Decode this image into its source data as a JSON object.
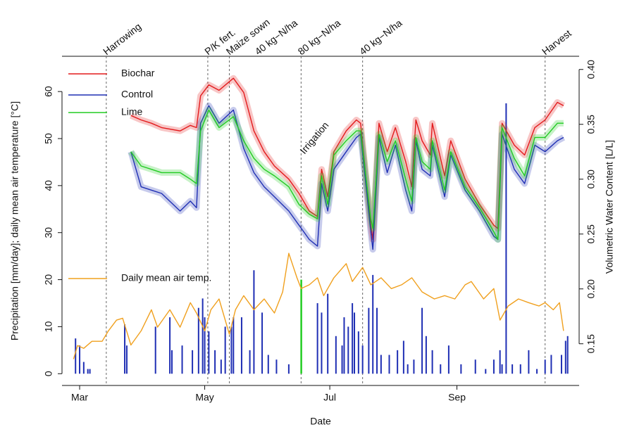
{
  "chart_data": {
    "type": "line",
    "xlabel": "Date",
    "ylabel": "Precipitation [mm/day]; daily mean air temperature [°C]",
    "y2label": "Volumetric Water Content [L/L]",
    "xlim": [
      51.4,
      303.6
    ],
    "ylim": [
      -2.5,
      67.5
    ],
    "y2lim": [
      0.112,
      0.412
    ],
    "xticks": [
      {
        "value": 60,
        "label": "Mar"
      },
      {
        "value": 121,
        "label": "May"
      },
      {
        "value": 182,
        "label": "Jul"
      },
      {
        "value": 244,
        "label": "Sep"
      }
    ],
    "yticks": [
      0,
      10,
      20,
      30,
      40,
      50,
      60
    ],
    "y2ticks": [
      {
        "value": 0.15,
        "label": "0.15"
      },
      {
        "value": 0.2,
        "label": "0.20"
      },
      {
        "value": 0.25,
        "label": "0.25"
      },
      {
        "value": 0.3,
        "label": "0.30"
      },
      {
        "value": 0.35,
        "label": "0.35"
      },
      {
        "value": 0.4,
        "label": "0.40"
      }
    ],
    "series": [
      {
        "name": "Biochar",
        "color": "#e31a1c",
        "axis": "y2",
        "x": [
          85,
          90,
          95,
          100,
          109,
          114,
          117,
          119,
          123,
          128,
          135,
          140,
          145,
          150,
          155,
          162,
          167,
          172,
          176,
          178,
          181,
          184,
          190,
          195,
          197,
          202,
          203,
          206,
          210,
          214,
          219,
          222,
          224,
          227,
          231,
          232,
          238,
          241,
          248,
          255,
          262,
          264,
          266,
          272,
          277,
          282,
          287,
          293,
          296
        ],
        "values": [
          0.358,
          0.354,
          0.351,
          0.347,
          0.344,
          0.349,
          0.347,
          0.376,
          0.386,
          0.381,
          0.392,
          0.379,
          0.344,
          0.325,
          0.312,
          0.3,
          0.287,
          0.271,
          0.266,
          0.309,
          0.284,
          0.325,
          0.344,
          0.354,
          0.351,
          0.258,
          0.245,
          0.351,
          0.325,
          0.347,
          0.316,
          0.293,
          0.354,
          0.335,
          0.322,
          0.351,
          0.303,
          0.335,
          0.3,
          0.277,
          0.258,
          0.255,
          0.351,
          0.331,
          0.322,
          0.347,
          0.354,
          0.37,
          0.367
        ]
      },
      {
        "name": "Control",
        "color": "#1f2fb4",
        "axis": "y2",
        "x": [
          85,
          90,
          95,
          100,
          109,
          114,
          117,
          119,
          123,
          128,
          135,
          140,
          145,
          150,
          155,
          162,
          167,
          172,
          176,
          178,
          181,
          184,
          190,
          195,
          197,
          202,
          203,
          206,
          210,
          214,
          219,
          222,
          224,
          227,
          231,
          232,
          238,
          241,
          248,
          255,
          262,
          264,
          266,
          272,
          277,
          282,
          287,
          293,
          296
        ],
        "values": [
          0.325,
          0.293,
          0.29,
          0.287,
          0.271,
          0.28,
          0.274,
          0.351,
          0.367,
          0.351,
          0.363,
          0.328,
          0.306,
          0.293,
          0.284,
          0.271,
          0.258,
          0.245,
          0.239,
          0.296,
          0.271,
          0.309,
          0.325,
          0.338,
          0.341,
          0.252,
          0.236,
          0.338,
          0.306,
          0.331,
          0.29,
          0.271,
          0.335,
          0.309,
          0.303,
          0.331,
          0.284,
          0.322,
          0.29,
          0.271,
          0.248,
          0.245,
          0.341,
          0.309,
          0.296,
          0.331,
          0.325,
          0.335,
          0.338
        ]
      },
      {
        "name": "Lime",
        "color": "#22cc22",
        "axis": "y2",
        "x": [
          85,
          90,
          95,
          100,
          109,
          114,
          117,
          119,
          123,
          128,
          135,
          140,
          145,
          150,
          155,
          162,
          167,
          172,
          176,
          178,
          181,
          184,
          190,
          195,
          197,
          202,
          203,
          206,
          210,
          214,
          219,
          222,
          224,
          227,
          231,
          232,
          238,
          241,
          248,
          255,
          262,
          264,
          266,
          272,
          277,
          282,
          287,
          293,
          296
        ],
        "values": [
          0.325,
          0.312,
          0.309,
          0.306,
          0.306,
          0.3,
          0.296,
          0.344,
          0.363,
          0.347,
          0.357,
          0.335,
          0.319,
          0.309,
          0.303,
          0.293,
          0.277,
          0.268,
          0.264,
          0.303,
          0.277,
          0.322,
          0.335,
          0.344,
          0.344,
          0.264,
          0.255,
          0.341,
          0.316,
          0.335,
          0.3,
          0.28,
          0.338,
          0.316,
          0.309,
          0.335,
          0.29,
          0.325,
          0.293,
          0.274,
          0.252,
          0.245,
          0.347,
          0.319,
          0.303,
          0.338,
          0.338,
          0.351,
          0.351
        ]
      },
      {
        "name": "Daily mean air temp.",
        "color": "#f0a01e",
        "axis": "y",
        "x": [
          57,
          59,
          62,
          66,
          71,
          74,
          78,
          81,
          85,
          90,
          95,
          98,
          104,
          109,
          114,
          117,
          121,
          124,
          128,
          133,
          136,
          140,
          145,
          150,
          155,
          159,
          162,
          166,
          168,
          172,
          176,
          179,
          184,
          190,
          193,
          198,
          202,
          207,
          212,
          217,
          222,
          227,
          233,
          238,
          243,
          248,
          251,
          257,
          262,
          265,
          269,
          274,
          279,
          284,
          287,
          291,
          294,
          296
        ],
        "values": [
          3.1,
          6,
          5.4,
          6.9,
          6.9,
          9.1,
          11.4,
          11.8,
          6.1,
          9.1,
          13.6,
          9.9,
          13.6,
          9.9,
          15.1,
          12.9,
          9.1,
          13.6,
          15.9,
          8.4,
          13.6,
          16.6,
          13.6,
          15.9,
          12.9,
          17.4,
          25.6,
          20.4,
          18.1,
          18.9,
          20.4,
          16.6,
          20.4,
          23.4,
          19.6,
          22.6,
          18.9,
          20.4,
          18.1,
          18.9,
          20.4,
          17.4,
          15.9,
          16.6,
          15.9,
          18.9,
          19.6,
          15.9,
          18.1,
          11.4,
          14.4,
          15.9,
          15.1,
          14.4,
          15.1,
          13.6,
          15.1,
          9.1
        ]
      }
    ],
    "precipitation": {
      "color": "#1f2fb4",
      "x": [
        58,
        60,
        62,
        64,
        65,
        82,
        83,
        97,
        104,
        105,
        110,
        115,
        118,
        120,
        121,
        123,
        126,
        129,
        131,
        134,
        135,
        139,
        143,
        145,
        149,
        152,
        156,
        162,
        176,
        178,
        181,
        185,
        188,
        189,
        191,
        193,
        194,
        196,
        198,
        201,
        203,
        205,
        207,
        211,
        215,
        218,
        220,
        223,
        227,
        229,
        232,
        236,
        240,
        246,
        253,
        258,
        262,
        265,
        266,
        268,
        271,
        275,
        279,
        283,
        287,
        290,
        295,
        297,
        298
      ],
      "values": [
        7.5,
        6,
        2.5,
        1,
        1,
        10.5,
        6,
        10,
        12,
        5,
        6,
        5,
        14,
        16,
        12,
        9,
        5,
        3,
        10,
        10,
        12,
        12,
        5,
        22,
        13,
        4,
        3,
        2,
        15,
        13,
        17,
        8,
        6,
        12,
        10,
        15,
        13,
        9,
        6,
        14,
        21,
        14,
        4,
        4,
        5,
        7,
        2,
        3,
        14,
        8,
        5,
        2,
        6,
        2,
        3,
        1,
        3,
        5,
        2,
        57.5,
        2,
        2,
        5,
        1,
        3,
        4,
        4,
        7,
        8
      ]
    },
    "irrigation": {
      "label": "Irrigation",
      "x": 168,
      "value": 20,
      "color": "#22cc22"
    },
    "events": [
      {
        "label": "Harrowing",
        "x": 73,
        "line": true
      },
      {
        "label": "P/K fert.",
        "x": 122.5,
        "line": true
      },
      {
        "label": "Maize sown",
        "x": 133,
        "line": true
      },
      {
        "label": "40 kg−N/ha",
        "x": 147,
        "line": false
      },
      {
        "label": "80 kg−N/ha",
        "x": 168,
        "line": true
      },
      {
        "label": "40 kg−N/ha",
        "x": 198,
        "line": true
      },
      {
        "label": "Harvest",
        "x": 287,
        "line": true
      }
    ]
  }
}
